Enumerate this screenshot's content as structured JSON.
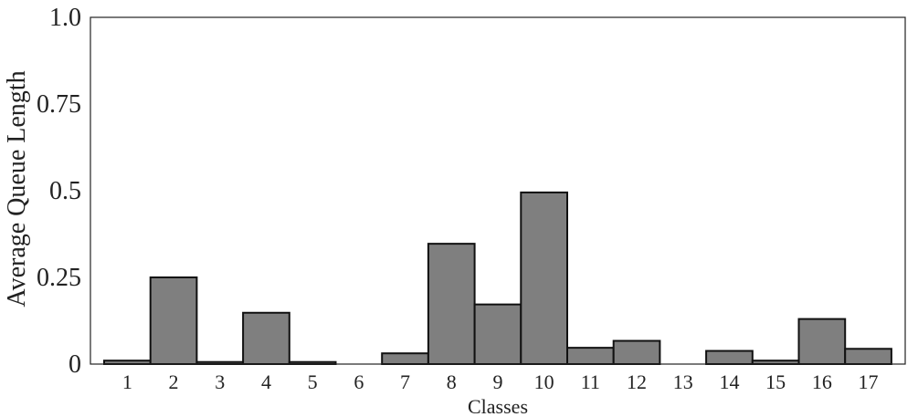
{
  "chart_data": {
    "type": "bar",
    "categories": [
      "1",
      "2",
      "3",
      "4",
      "5",
      "6",
      "7",
      "8",
      "9",
      "10",
      "11",
      "12",
      "13",
      "14",
      "15",
      "16",
      "17"
    ],
    "values": [
      0.01,
      0.25,
      0.006,
      0.148,
      0.006,
      0.0,
      0.031,
      0.347,
      0.172,
      0.495,
      0.047,
      0.067,
      0.0,
      0.038,
      0.01,
      0.13,
      0.044
    ],
    "title": "",
    "xlabel": "Classes",
    "ylabel": "Average Queue Length",
    "ylim": [
      0,
      1.0
    ],
    "yticks": [
      0,
      0.25,
      0.5,
      0.75,
      1.0
    ],
    "ytick_labels": [
      "0",
      "0.25",
      "0.5",
      "0.75",
      "1.0"
    ],
    "grid": false,
    "legend": "none",
    "colors": {
      "bar_fill": "#7f7f7f",
      "bar_stroke": "#111111",
      "axis": "#222222"
    }
  }
}
